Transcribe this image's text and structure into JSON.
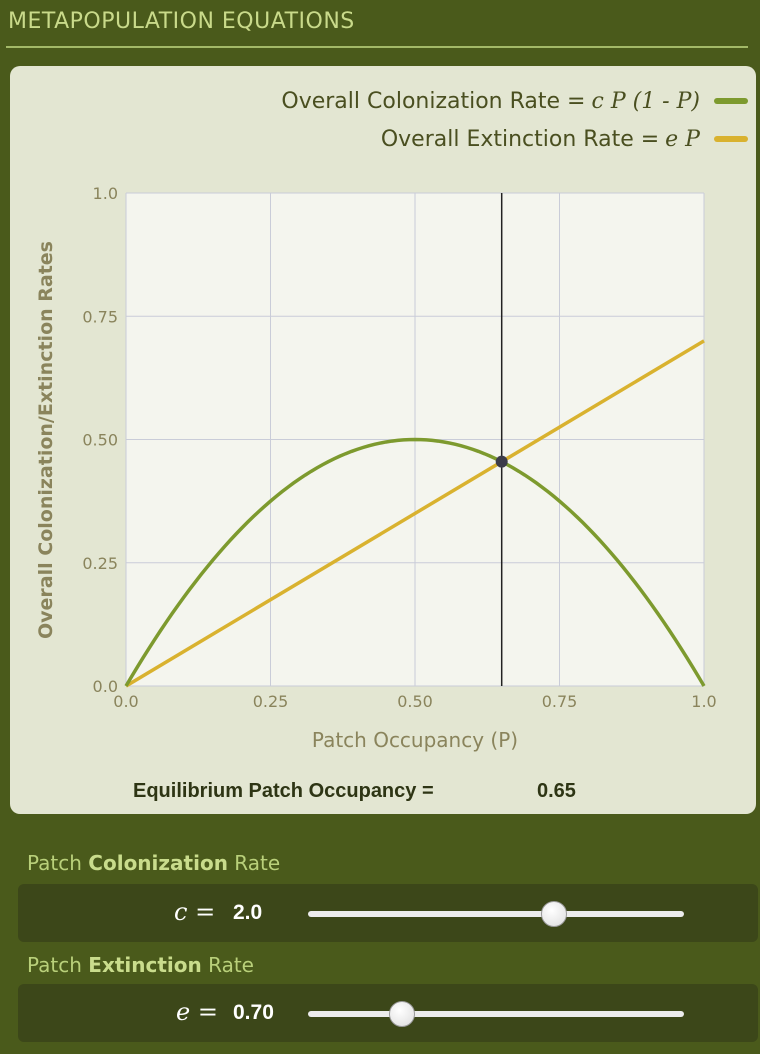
{
  "header": {
    "title": "METAPOPULATION EQUATIONS"
  },
  "legend": {
    "colonization": {
      "label": "Overall Colonization Rate =",
      "formula": "c P (1 - P)",
      "color": "#7d9a2e"
    },
    "extinction": {
      "label": "Overall Extinction Rate =",
      "formula": "e P",
      "color": "#d9b22f"
    }
  },
  "chart_data": {
    "type": "line",
    "xlabel": "Patch Occupancy (P)",
    "ylabel": "Overall Colonization/Extinction Rates",
    "xlim": [
      0,
      1
    ],
    "ylim": [
      0,
      1
    ],
    "x_ticks": [
      "0.0",
      "0.25",
      "0.50",
      "0.75",
      "1.0"
    ],
    "y_ticks": [
      "0.0",
      "0.25",
      "0.50",
      "0.75",
      "1.0"
    ],
    "grid": true,
    "series": [
      {
        "name": "Overall Colonization Rate",
        "formula": "c*P*(1-P)",
        "c": 2.0,
        "color": "#7d9a2e",
        "x": [
          0,
          0.1,
          0.2,
          0.3,
          0.4,
          0.5,
          0.6,
          0.7,
          0.8,
          0.9,
          1.0
        ],
        "y": [
          0,
          0.18,
          0.32,
          0.42,
          0.48,
          0.5,
          0.48,
          0.42,
          0.32,
          0.18,
          0
        ]
      },
      {
        "name": "Overall Extinction Rate",
        "formula": "e*P",
        "e": 0.7,
        "color": "#d9b22f",
        "x": [
          0,
          1.0
        ],
        "y": [
          0,
          0.7
        ]
      }
    ],
    "equilibrium_marker": {
      "x": 0.65,
      "y": 0.455
    }
  },
  "equilibrium": {
    "label": "Equilibrium Patch Occupancy =",
    "value": "0.65"
  },
  "sliders": [
    {
      "caption_prefix": "Patch ",
      "caption_bold": "Colonization",
      "caption_suffix": " Rate",
      "symbol": "c",
      "equals": "=",
      "value": "2.0",
      "min": 0,
      "max": 3,
      "position": 0.655
    },
    {
      "caption_prefix": "Patch ",
      "caption_bold": "Extinction",
      "caption_suffix": " Rate",
      "symbol": "e",
      "equals": "=",
      "value": "0.70",
      "min": 0,
      "max": 3,
      "position": 0.25
    }
  ]
}
